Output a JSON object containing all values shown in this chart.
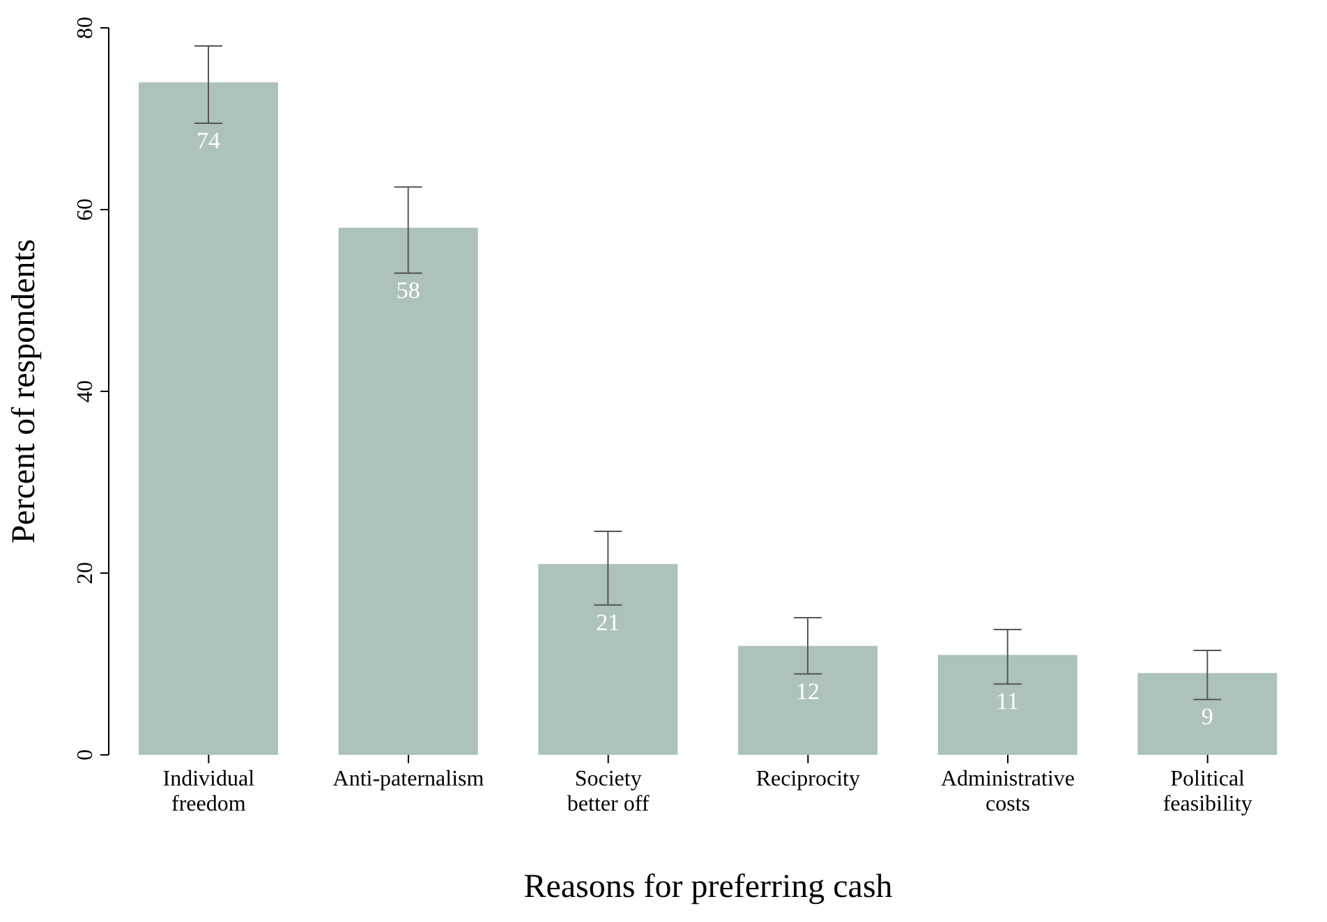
{
  "chart_data": {
    "type": "bar",
    "xlabel": "Reasons for preferring cash",
    "ylabel": "Percent of respondents",
    "categories": [
      "Individual\nfreedom",
      "Anti-paternalism",
      "Society\nbetter off",
      "Reciprocity",
      "Administrative\ncosts",
      "Political\nfeasibility"
    ],
    "values": [
      74,
      58,
      21,
      12,
      11,
      9
    ],
    "errors": [
      [
        69.5,
        78
      ],
      [
        53,
        62.5
      ],
      [
        16.5,
        24.6
      ],
      [
        8.9,
        15.1
      ],
      [
        7.8,
        13.8
      ],
      [
        6.1,
        11.5
      ]
    ],
    "color": "#adc2bc",
    "data_labels": true,
    "grid": false,
    "ylim": [
      0,
      80
    ],
    "yticks": [
      0,
      20,
      40,
      60,
      80
    ]
  }
}
